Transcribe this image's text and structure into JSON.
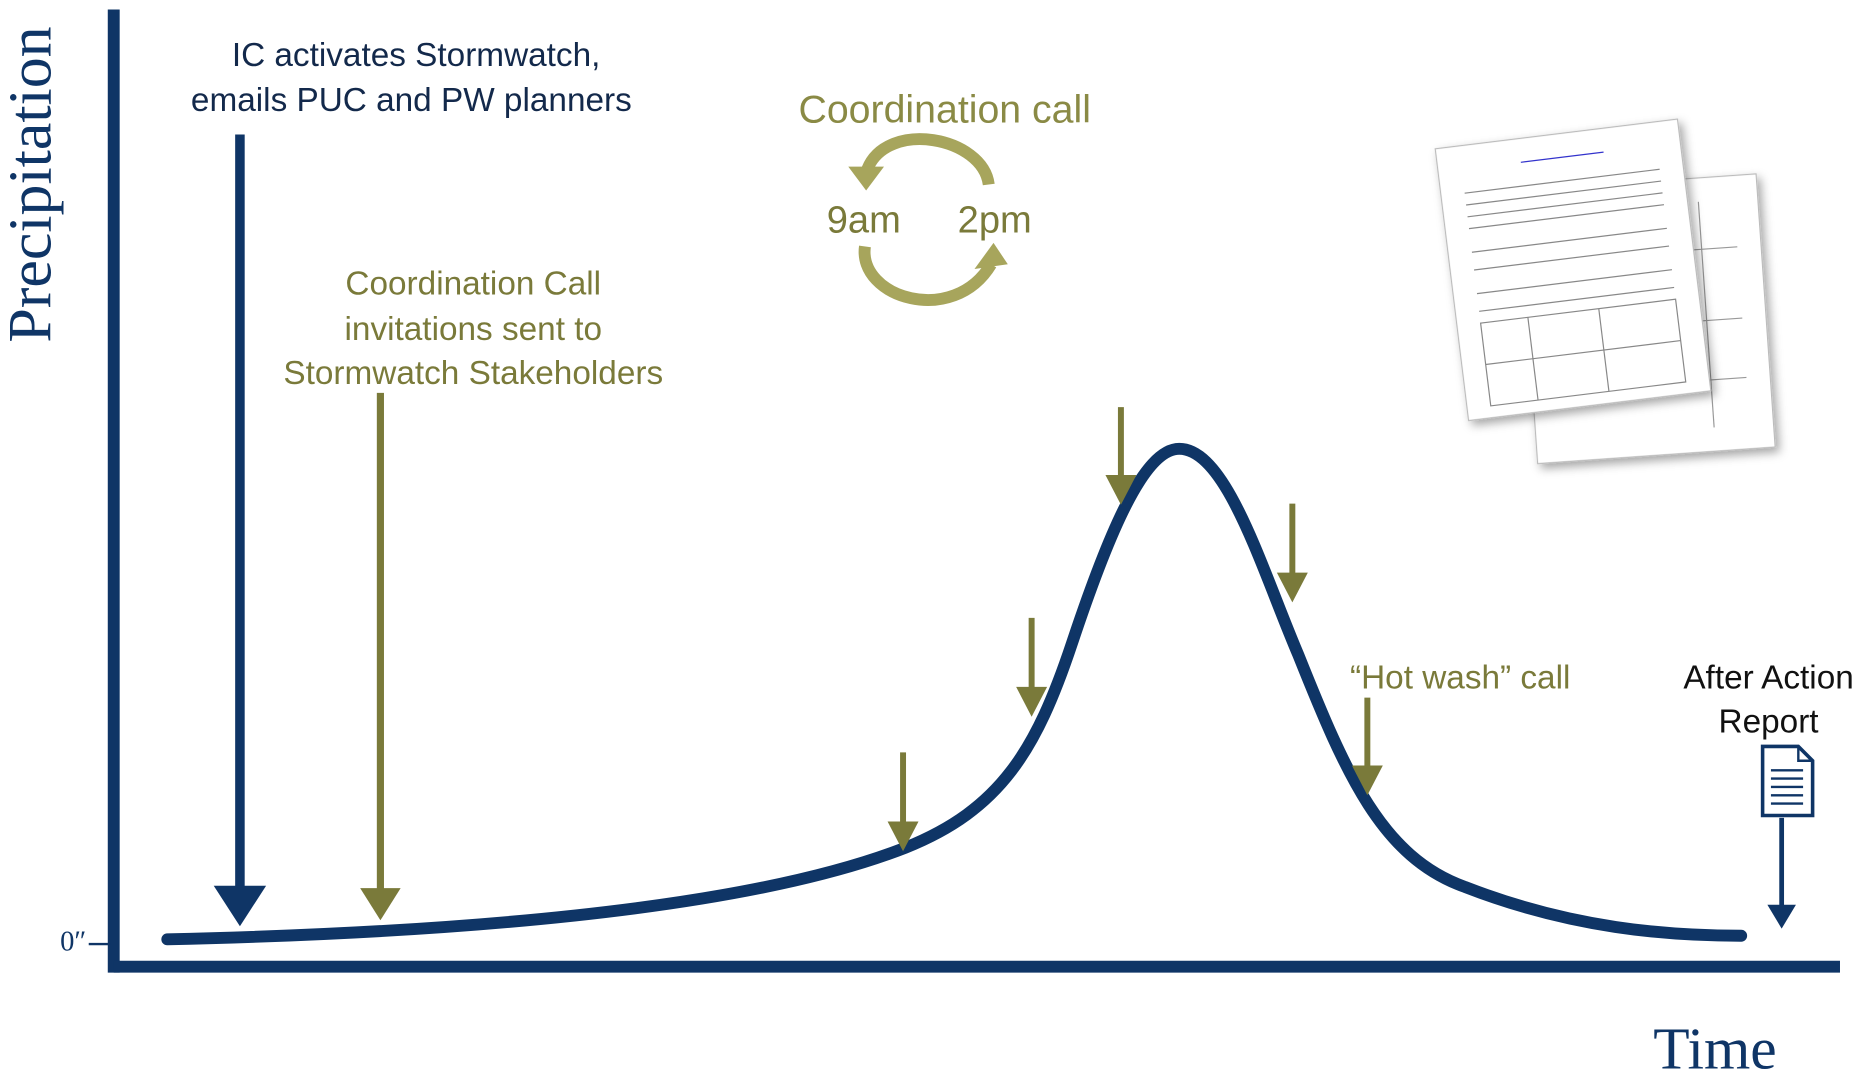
{
  "axes": {
    "y_label": "Precipitation",
    "x_label": "Time",
    "zero_label": "0″"
  },
  "annotations": {
    "activation": {
      "lines": [
        "IC activates Stormwatch,",
        "emails PUC and PW planners"
      ]
    },
    "invitations": {
      "lines": [
        "Coordination Call",
        "invitations sent to",
        "Stormwatch Stakeholders"
      ]
    },
    "coordination_call": {
      "title": "Coordination call",
      "morning": "9am",
      "afternoon": "2pm"
    },
    "hot_wash": "“Hot wash” call",
    "after_action": {
      "lines": [
        "After Action",
        "Report"
      ]
    }
  }
}
